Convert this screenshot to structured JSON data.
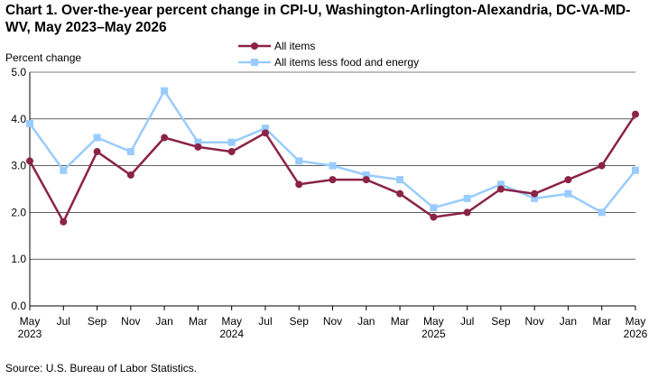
{
  "title": "Chart 1. Over-the-year percent change in CPI-U, Washington-Arlington-Alexandria,  DC-VA-MD-WV, May 2023–May 2026",
  "source": "Source: U.S. Bureau of Labor Statistics.",
  "colors": {
    "all_items": "#8B2346",
    "core": "#99CCFF",
    "axis": "#000000",
    "grid": "#000000"
  },
  "chart_data": {
    "type": "line",
    "ylabel": "Percent change",
    "ylim": [
      0,
      5
    ],
    "yticks": [
      "0.0",
      "1.0",
      "2.0",
      "3.0",
      "4.0",
      "5.0"
    ],
    "grid": true,
    "legend_position": "top-center",
    "x": [
      "May 2023",
      "Jul 2023",
      "Sep 2023",
      "Nov 2023",
      "Jan 2024",
      "Mar 2024",
      "May 2024",
      "Jul 2024",
      "Sep 2024",
      "Nov 2024",
      "Jan 2025",
      "Mar 2025",
      "May 2025",
      "Jul 2025",
      "Sep 2025",
      "Nov 2025",
      "Jan 2026",
      "Mar 2026",
      "May 2026"
    ],
    "tick_months": [
      "May",
      "Jul",
      "Sep",
      "Nov",
      "Jan",
      "Mar",
      "May",
      "Jul",
      "Sep",
      "Nov",
      "Jan",
      "Mar",
      "May",
      "Jul",
      "Sep",
      "Nov",
      "Jan",
      "Mar",
      "May"
    ],
    "tick_years": [
      "2023",
      "",
      "",
      "",
      "",
      "",
      "2024",
      "",
      "",
      "",
      "",
      "",
      "2025",
      "",
      "",
      "",
      "",
      "",
      "2026"
    ],
    "series": [
      {
        "name": "All items",
        "marker": "circle",
        "values": [
          3.1,
          1.8,
          3.3,
          2.8,
          3.6,
          3.4,
          3.3,
          3.7,
          2.6,
          2.7,
          2.7,
          2.4,
          1.9,
          2.0,
          2.5,
          2.4,
          2.7,
          3.0,
          4.1
        ]
      },
      {
        "name": "All items less food and energy",
        "marker": "square",
        "values": [
          3.9,
          2.9,
          3.6,
          3.3,
          4.6,
          3.5,
          3.5,
          3.8,
          3.1,
          3.0,
          2.8,
          2.7,
          2.1,
          2.3,
          2.6,
          2.3,
          2.4,
          2.0,
          2.9
        ]
      }
    ]
  }
}
